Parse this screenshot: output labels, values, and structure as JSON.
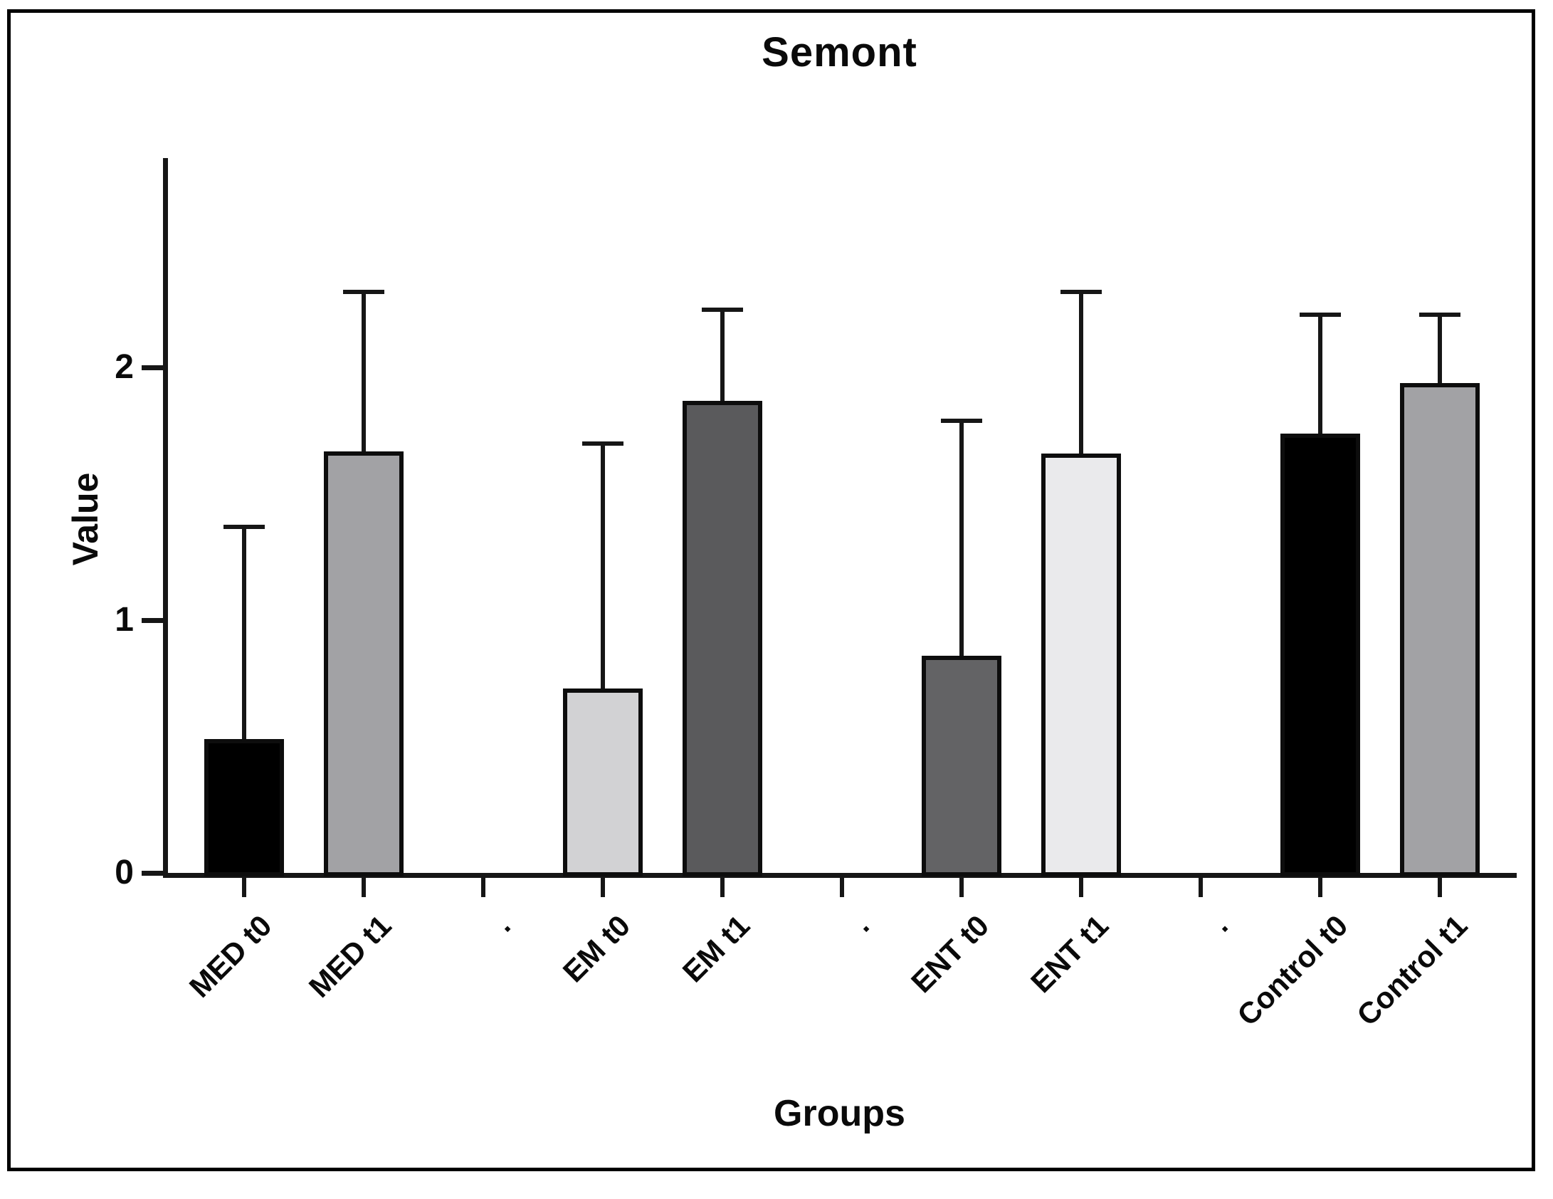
{
  "figure": {
    "title": "Semont",
    "xlabel": "Groups",
    "ylabel": "Value",
    "frame_color": "#000000",
    "background_color": "#ffffff"
  },
  "chart_data": {
    "type": "bar",
    "title": "Semont",
    "xlabel": "Groups",
    "ylabel": "Value",
    "ylim": [
      0,
      2.83
    ],
    "yticks": [
      "0",
      "1",
      "2"
    ],
    "grid": false,
    "legend": false,
    "error_bars": "plus_only_with_caps",
    "axis_color": "#161616",
    "bar_border_color": "#0d0d0d",
    "categories": [
      "MED t0",
      "MED t1",
      ".",
      "EM t0",
      "EM t1",
      ".",
      "ENT t0",
      "ENT t1",
      ".",
      "Control t0",
      "Control t1"
    ],
    "series": [
      {
        "name": "Value",
        "values": [
          0.53,
          1.67,
          null,
          0.73,
          1.87,
          null,
          0.86,
          1.66,
          null,
          1.74,
          1.94
        ],
        "errors_plus": [
          0.84,
          0.63,
          null,
          0.97,
          0.36,
          null,
          0.93,
          0.64,
          null,
          0.47,
          0.27
        ],
        "bar_colors": [
          "#000000",
          "#a2a2a5",
          null,
          "#d2d2d4",
          "#5a5a5c",
          null,
          "#636365",
          "#eaeaec",
          null,
          "#000000",
          "#a2a2a5"
        ]
      }
    ]
  }
}
